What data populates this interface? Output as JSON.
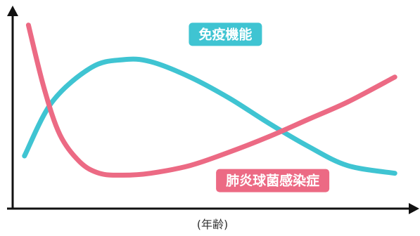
{
  "chart_data": {
    "type": "line",
    "xlabel": "(年齢)",
    "ylabel": "",
    "xlim": [
      0,
      100
    ],
    "ylim": [
      0,
      100
    ],
    "axes": {
      "x_tick_labels": false,
      "y_tick_labels": false,
      "grid": false,
      "arrows": true,
      "color": "#111111"
    },
    "series": [
      {
        "name": "免疫機能",
        "color": "#3fc4d2",
        "x": [
          3,
          10,
          20,
          28,
          35,
          45,
          55,
          65,
          75,
          85,
          97
        ],
        "y": [
          27,
          55,
          73,
          77,
          76,
          68,
          57,
          44,
          32,
          22,
          18
        ]
      },
      {
        "name": "肺炎球菌感染症",
        "color": "#ec6a84",
        "x": [
          4,
          8,
          12,
          17,
          22,
          28,
          35,
          45,
          55,
          65,
          75,
          85,
          97
        ],
        "y": [
          95,
          62,
          38,
          24,
          18,
          17,
          18,
          22,
          29,
          37,
          46,
          55,
          68
        ]
      }
    ],
    "annotations": [
      {
        "text": "免疫機能",
        "series": 0,
        "x": 54,
        "y": 90
      },
      {
        "text": "肺炎球菌感染症",
        "series": 1,
        "x": 66,
        "y": 14
      }
    ]
  }
}
